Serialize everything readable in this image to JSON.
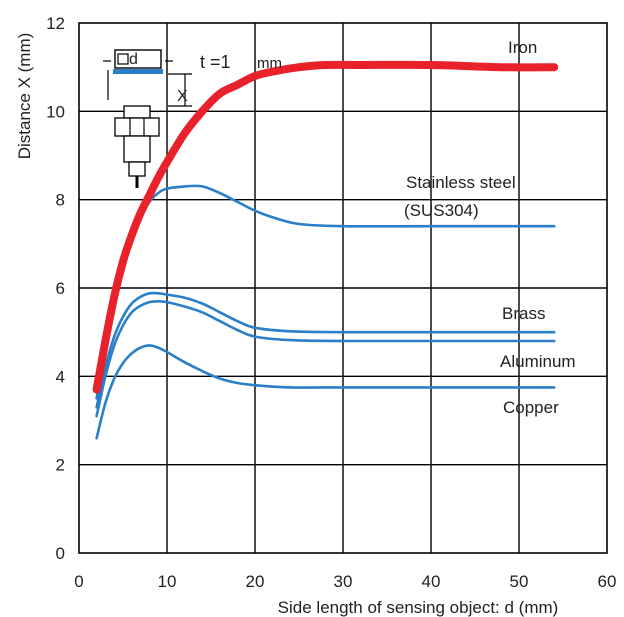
{
  "chart_data": {
    "type": "line",
    "title": "",
    "xlabel": "Side length of sensing object: d (mm)",
    "ylabel": "Distance X (mm)",
    "xlim": [
      0,
      60
    ],
    "ylim": [
      0,
      12
    ],
    "xticks": [
      0,
      10,
      20,
      30,
      40,
      50,
      60
    ],
    "yticks": [
      0,
      2,
      4,
      6,
      8,
      10,
      12
    ],
    "grid": true,
    "inset": {
      "thickness_label": "t =1",
      "thickness_unit": "mm",
      "d_label": "d",
      "x_label": "X"
    },
    "series": [
      {
        "name": "Iron",
        "color": "#e8212a",
        "x": [
          2,
          3,
          4,
          5,
          6,
          7,
          8,
          9,
          10,
          12,
          14,
          16,
          18,
          20,
          22,
          25,
          28,
          32,
          40,
          48,
          54
        ],
        "y": [
          3.7,
          4.8,
          5.8,
          6.6,
          7.2,
          7.7,
          8.1,
          8.5,
          8.85,
          9.5,
          10.0,
          10.4,
          10.6,
          10.8,
          10.9,
          11.0,
          11.05,
          11.05,
          11.05,
          11.0,
          11.0
        ]
      },
      {
        "name": "Stainless steel (SUS304)",
        "label_lines": [
          "Stainless steel",
          "(SUS304)"
        ],
        "color": "#2a7fc9",
        "x": [
          2,
          3,
          4,
          5,
          6,
          7,
          8,
          9,
          10,
          12,
          14,
          16,
          18,
          20,
          22,
          25,
          30,
          40,
          54
        ],
        "y": [
          3.5,
          4.6,
          5.7,
          6.5,
          7.1,
          7.6,
          7.95,
          8.15,
          8.25,
          8.3,
          8.3,
          8.15,
          7.95,
          7.75,
          7.6,
          7.45,
          7.4,
          7.4,
          7.4
        ]
      },
      {
        "name": "Brass",
        "color": "#2a7fc9",
        "x": [
          2,
          3,
          4,
          5,
          6,
          7,
          8,
          9,
          10,
          12,
          14,
          16,
          18,
          20,
          24,
          30,
          40,
          54
        ],
        "y": [
          3.3,
          4.2,
          4.9,
          5.35,
          5.65,
          5.8,
          5.88,
          5.88,
          5.85,
          5.78,
          5.65,
          5.45,
          5.25,
          5.1,
          5.02,
          5.0,
          5.0,
          5.0
        ]
      },
      {
        "name": "Aluminum",
        "color": "#2a7fc9",
        "x": [
          2,
          3,
          4,
          5,
          6,
          7,
          8,
          9,
          10,
          12,
          14,
          16,
          18,
          20,
          24,
          30,
          40,
          54
        ],
        "y": [
          3.1,
          4.0,
          4.7,
          5.15,
          5.45,
          5.6,
          5.68,
          5.7,
          5.68,
          5.58,
          5.45,
          5.25,
          5.05,
          4.9,
          4.82,
          4.8,
          4.8,
          4.8
        ]
      },
      {
        "name": "Copper",
        "color": "#2a7fc9",
        "x": [
          2,
          3,
          4,
          5,
          6,
          7,
          8,
          9,
          10,
          12,
          14,
          16,
          18,
          20,
          24,
          30,
          40,
          54
        ],
        "y": [
          2.6,
          3.4,
          3.95,
          4.3,
          4.52,
          4.65,
          4.7,
          4.65,
          4.55,
          4.32,
          4.12,
          3.95,
          3.85,
          3.8,
          3.75,
          3.75,
          3.75,
          3.75
        ]
      }
    ]
  }
}
